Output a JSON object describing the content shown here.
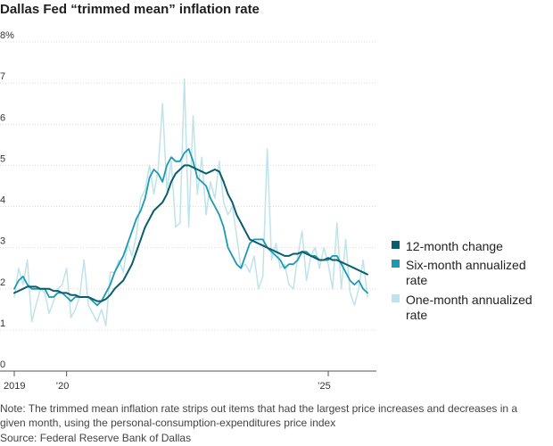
{
  "chart_data": {
    "type": "line",
    "title": "Dallas Fed “trimmed mean” inflation rate",
    "ylabel": "%",
    "ylim": [
      0,
      8
    ],
    "yticks": [
      {
        "value": 8,
        "label": "8%"
      },
      {
        "value": 7,
        "label": "7"
      },
      {
        "value": 6,
        "label": "6"
      },
      {
        "value": 5,
        "label": "5"
      },
      {
        "value": 4,
        "label": "4"
      },
      {
        "value": 3,
        "label": "3"
      },
      {
        "value": 2,
        "label": "2"
      },
      {
        "value": 1,
        "label": "1"
      },
      {
        "value": 0,
        "label": "0"
      }
    ],
    "xlim": [
      2019.0,
      2025.92
    ],
    "xticks": [
      {
        "value": 2019.0,
        "label": "2019"
      },
      {
        "value": 2020.0,
        "label": "’20"
      },
      {
        "value": 2025.0,
        "label": "’25"
      }
    ],
    "x_start": 2019.0,
    "x_step_months": 1,
    "series": [
      {
        "name": "One-month annualized rate",
        "color": "#bfe3ea",
        "values": [
          1.8,
          2.5,
          2.1,
          2.7,
          1.2,
          1.6,
          2.0,
          1.9,
          1.4,
          1.7,
          2.0,
          2.1,
          2.5,
          1.3,
          1.5,
          1.8,
          2.7,
          1.6,
          1.4,
          1.2,
          1.5,
          1.1,
          2.4,
          2.4,
          2.7,
          2.4,
          3.1,
          2.8,
          3.3,
          4.2,
          4.4,
          5.0,
          4.3,
          4.9,
          6.5,
          4.4,
          5.1,
          3.5,
          3.6,
          7.1,
          3.5,
          6.2,
          4.3,
          5.2,
          3.8,
          4.6,
          4.2,
          5.1,
          4.1,
          3.8,
          4.0,
          3.3,
          2.5,
          2.6,
          2.4,
          2.8,
          2.0,
          2.3,
          5.4,
          2.7,
          3.1,
          2.5,
          2.6,
          2.1,
          2.0,
          2.8,
          3.4,
          2.2,
          2.8,
          3.0,
          2.5,
          3.0,
          2.6,
          2.0,
          3.6,
          2.0,
          3.2,
          1.9,
          1.6,
          2.0,
          2.7,
          1.8
        ]
      },
      {
        "name": "Six-month annualized rate",
        "color": "#1b9bb3",
        "values": [
          2.0,
          2.2,
          2.3,
          2.1,
          2.0,
          2.0,
          2.0,
          2.0,
          1.8,
          1.8,
          1.9,
          1.9,
          1.8,
          1.7,
          1.8,
          1.8,
          1.8,
          1.8,
          1.7,
          1.6,
          1.7,
          1.9,
          2.1,
          2.4,
          2.6,
          2.8,
          3.1,
          3.4,
          3.7,
          3.9,
          4.2,
          4.7,
          4.9,
          4.8,
          4.6,
          5.0,
          5.2,
          5.1,
          5.1,
          5.3,
          5.4,
          5.1,
          4.7,
          4.6,
          4.5,
          4.2,
          4.0,
          3.8,
          3.5,
          3.0,
          2.8,
          2.6,
          2.5,
          2.8,
          3.1,
          3.2,
          3.2,
          3.2,
          3.0,
          2.9,
          2.8,
          2.7,
          2.5,
          2.6,
          2.6,
          2.7,
          2.9,
          2.9,
          2.8,
          2.8,
          2.7,
          2.7,
          2.7,
          2.8,
          2.8,
          2.6,
          2.4,
          2.2,
          2.1,
          2.2,
          2.0,
          1.9
        ]
      },
      {
        "name": "12-month change",
        "color": "#0a5d6c",
        "values": [
          1.9,
          1.95,
          2.0,
          2.05,
          2.05,
          2.05,
          2.0,
          2.0,
          2.0,
          1.95,
          1.95,
          1.9,
          1.9,
          1.85,
          1.85,
          1.8,
          1.8,
          1.8,
          1.75,
          1.7,
          1.7,
          1.75,
          1.85,
          2.0,
          2.1,
          2.2,
          2.4,
          2.6,
          2.9,
          3.2,
          3.5,
          3.7,
          3.9,
          4.0,
          4.1,
          4.3,
          4.6,
          4.8,
          4.9,
          5.0,
          5.0,
          4.95,
          4.9,
          4.85,
          4.8,
          4.85,
          4.9,
          4.85,
          4.6,
          4.3,
          4.1,
          3.8,
          3.6,
          3.4,
          3.2,
          3.15,
          3.1,
          3.05,
          3.0,
          2.95,
          2.9,
          2.85,
          2.8,
          2.8,
          2.85,
          2.85,
          2.9,
          2.85,
          2.8,
          2.75,
          2.7,
          2.7,
          2.75,
          2.7,
          2.7,
          2.65,
          2.6,
          2.55,
          2.5,
          2.45,
          2.4,
          2.35
        ]
      }
    ],
    "legend": [
      {
        "label_lines": [
          "12-month change"
        ],
        "color": "#0a5d6c"
      },
      {
        "label_lines": [
          "Six-month annualized",
          "rate"
        ],
        "color": "#1b9bb3"
      },
      {
        "label_lines": [
          "One-month annualized",
          "rate"
        ],
        "color": "#bfe3ea"
      }
    ],
    "legend_position": "right",
    "grid": true
  },
  "note": "Note: The trimmed mean inflation rate strips out items that had the largest price increases and decreases in a given month, using the personal-consumption-expenditures price index",
  "source": "Source: Federal Reserve Bank of Dallas"
}
